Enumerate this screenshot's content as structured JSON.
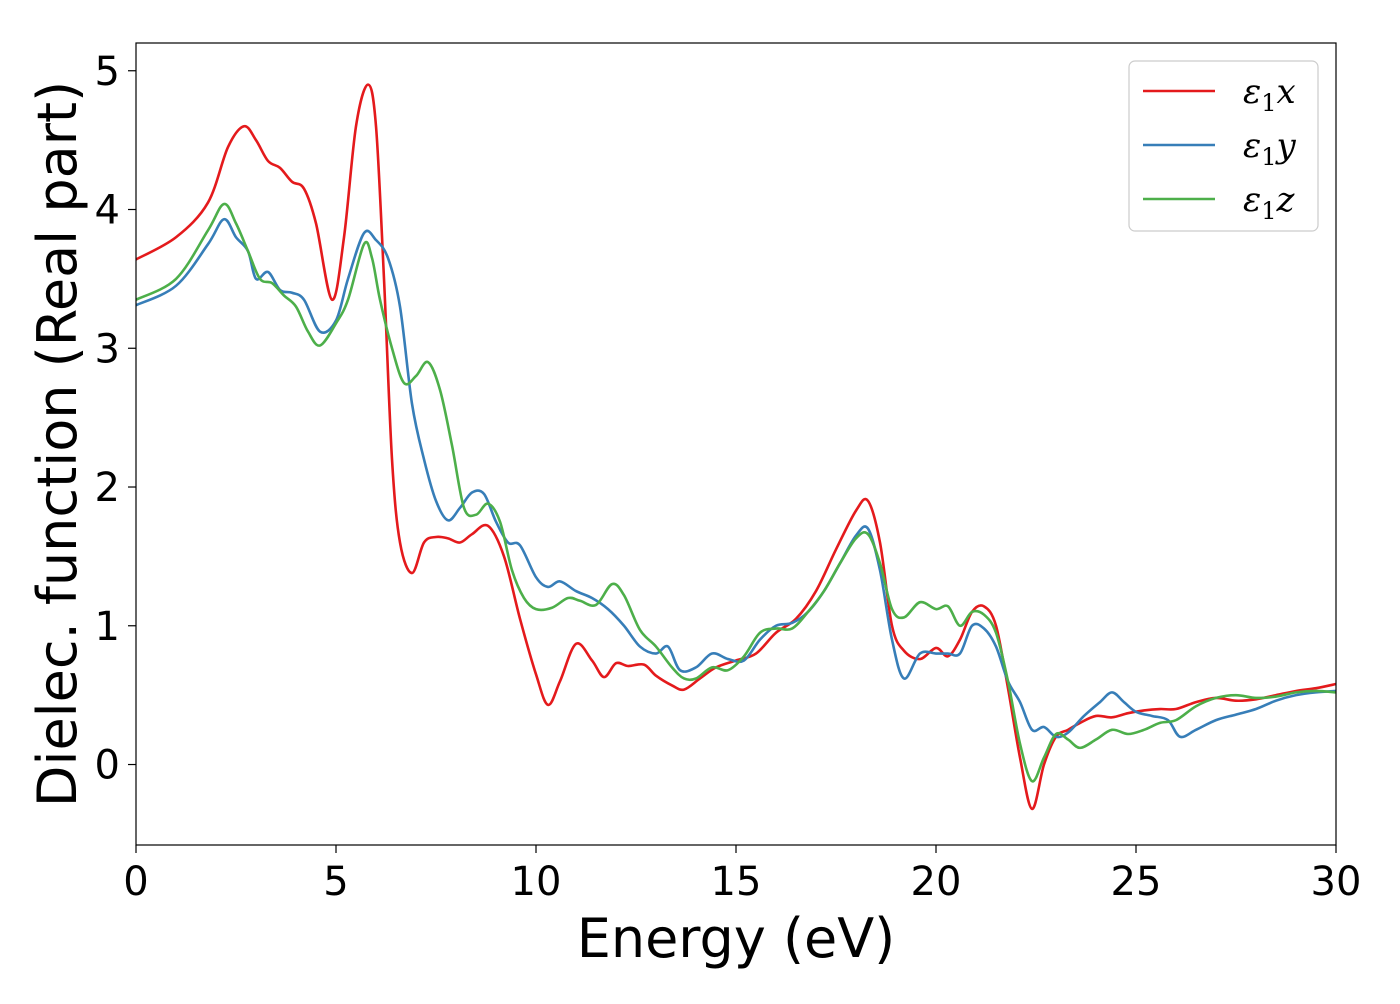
{
  "chart_data": {
    "type": "line",
    "title": "",
    "xlabel": "Energy (eV)",
    "ylabel": "Dielec. function (Real part)",
    "xlim": [
      0,
      30
    ],
    "ylim": [
      -0.58,
      5.2
    ],
    "xticks": [
      0,
      5,
      10,
      15,
      20,
      25,
      30
    ],
    "xtick_labels": [
      "0",
      "5",
      "10",
      "15",
      "20",
      "25",
      "30"
    ],
    "yticks": [
      0,
      1,
      2,
      3,
      4,
      5
    ],
    "ytick_labels": [
      "0",
      "1",
      "2",
      "3",
      "4",
      "5"
    ],
    "grid": false,
    "legend_position": "top-right",
    "series": [
      {
        "name": "ε₁x",
        "legend_base": "ε",
        "legend_sub": "1",
        "legend_var": "x",
        "color": "#e41a1c",
        "x": [
          0,
          1,
          1.8,
          2.3,
          2.7,
          3.0,
          3.3,
          3.6,
          3.9,
          4.2,
          4.5,
          4.9,
          5.2,
          5.5,
          5.8,
          6.0,
          6.2,
          6.4,
          6.6,
          6.9,
          7.2,
          7.5,
          7.8,
          8.1,
          8.4,
          8.8,
          9.2,
          9.6,
          10.0,
          10.3,
          10.6,
          11.0,
          11.4,
          11.7,
          12.0,
          12.3,
          12.7,
          13.0,
          13.4,
          13.7,
          14.1,
          14.5,
          15.0,
          15.5,
          16.0,
          16.5,
          17.0,
          17.5,
          18.0,
          18.3,
          18.6,
          18.9,
          19.2,
          19.6,
          20.0,
          20.3,
          20.6,
          20.9,
          21.2,
          21.5,
          21.8,
          22.1,
          22.4,
          22.7,
          23.0,
          23.3,
          23.6,
          24.0,
          24.4,
          24.8,
          25.2,
          25.6,
          26.0,
          26.5,
          27.0,
          27.5,
          28.0,
          28.5,
          29.0,
          29.5,
          30.0
        ],
        "values": [
          3.64,
          3.8,
          4.05,
          4.45,
          4.6,
          4.5,
          4.35,
          4.3,
          4.2,
          4.15,
          3.9,
          3.35,
          3.8,
          4.6,
          4.9,
          4.6,
          3.5,
          2.2,
          1.6,
          1.38,
          1.6,
          1.64,
          1.63,
          1.6,
          1.66,
          1.72,
          1.5,
          1.05,
          0.65,
          0.43,
          0.6,
          0.87,
          0.75,
          0.63,
          0.73,
          0.71,
          0.72,
          0.64,
          0.57,
          0.54,
          0.62,
          0.7,
          0.75,
          0.8,
          0.95,
          1.05,
          1.25,
          1.55,
          1.83,
          1.9,
          1.6,
          1.0,
          0.82,
          0.76,
          0.84,
          0.78,
          0.9,
          1.1,
          1.14,
          1.0,
          0.55,
          0.05,
          -0.32,
          0.0,
          0.2,
          0.25,
          0.3,
          0.35,
          0.34,
          0.37,
          0.39,
          0.4,
          0.4,
          0.45,
          0.48,
          0.46,
          0.47,
          0.5,
          0.53,
          0.55,
          0.58
        ]
      },
      {
        "name": "ε₁y",
        "legend_base": "ε",
        "legend_sub": "1",
        "legend_var": "y",
        "color": "#377eb8",
        "x": [
          0,
          1,
          1.8,
          2.2,
          2.5,
          2.8,
          3.0,
          3.3,
          3.6,
          3.9,
          4.2,
          4.6,
          5.0,
          5.3,
          5.7,
          6.0,
          6.3,
          6.6,
          6.9,
          7.2,
          7.5,
          7.8,
          8.1,
          8.4,
          8.7,
          9.0,
          9.3,
          9.6,
          10.0,
          10.3,
          10.6,
          11.0,
          11.4,
          11.8,
          12.2,
          12.6,
          13.0,
          13.3,
          13.6,
          14.0,
          14.4,
          14.8,
          15.2,
          15.6,
          16.0,
          16.4,
          16.8,
          17.2,
          17.6,
          18.0,
          18.3,
          18.6,
          18.9,
          19.2,
          19.6,
          20.0,
          20.3,
          20.6,
          20.9,
          21.2,
          21.5,
          21.8,
          22.1,
          22.4,
          22.7,
          23.0,
          23.3,
          23.7,
          24.1,
          24.4,
          24.7,
          25.0,
          25.4,
          25.8,
          26.1,
          26.5,
          27.0,
          27.5,
          28.0,
          28.5,
          29.0,
          29.5,
          30.0
        ],
        "values": [
          3.31,
          3.45,
          3.75,
          3.93,
          3.8,
          3.7,
          3.5,
          3.55,
          3.42,
          3.4,
          3.35,
          3.12,
          3.2,
          3.5,
          3.83,
          3.78,
          3.65,
          3.3,
          2.6,
          2.2,
          1.9,
          1.76,
          1.85,
          1.96,
          1.95,
          1.75,
          1.6,
          1.58,
          1.35,
          1.28,
          1.32,
          1.25,
          1.2,
          1.12,
          1.0,
          0.85,
          0.8,
          0.85,
          0.68,
          0.7,
          0.8,
          0.76,
          0.75,
          0.9,
          1.0,
          1.02,
          1.1,
          1.25,
          1.45,
          1.65,
          1.7,
          1.4,
          0.9,
          0.62,
          0.8,
          0.8,
          0.8,
          0.8,
          1.0,
          0.98,
          0.85,
          0.6,
          0.45,
          0.25,
          0.27,
          0.2,
          0.23,
          0.35,
          0.45,
          0.52,
          0.45,
          0.38,
          0.35,
          0.32,
          0.2,
          0.25,
          0.32,
          0.36,
          0.4,
          0.46,
          0.5,
          0.52,
          0.53
        ]
      },
      {
        "name": "ε₁z",
        "legend_base": "ε",
        "legend_sub": "1",
        "legend_var": "z",
        "color": "#4daf4a",
        "x": [
          0,
          1,
          1.8,
          2.2,
          2.5,
          2.8,
          3.1,
          3.4,
          3.7,
          4.0,
          4.3,
          4.6,
          5.0,
          5.3,
          5.7,
          5.9,
          6.1,
          6.4,
          6.7,
          7.0,
          7.3,
          7.6,
          7.9,
          8.2,
          8.5,
          8.8,
          9.1,
          9.4,
          9.7,
          10.0,
          10.4,
          10.8,
          11.1,
          11.5,
          11.9,
          12.2,
          12.6,
          13.0,
          13.4,
          13.7,
          14.0,
          14.4,
          14.8,
          15.2,
          15.6,
          16.0,
          16.4,
          16.8,
          17.2,
          17.6,
          18.0,
          18.3,
          18.6,
          18.9,
          19.2,
          19.6,
          20.0,
          20.3,
          20.6,
          20.9,
          21.2,
          21.5,
          21.8,
          22.1,
          22.4,
          22.7,
          23.0,
          23.3,
          23.6,
          24.0,
          24.4,
          24.8,
          25.2,
          25.6,
          26.0,
          26.5,
          27.0,
          27.5,
          28.0,
          28.5,
          29.0,
          29.5,
          30.0
        ],
        "values": [
          3.35,
          3.5,
          3.85,
          4.04,
          3.9,
          3.7,
          3.5,
          3.47,
          3.38,
          3.3,
          3.12,
          3.02,
          3.18,
          3.35,
          3.75,
          3.65,
          3.35,
          3.0,
          2.75,
          2.8,
          2.9,
          2.7,
          2.3,
          1.85,
          1.8,
          1.88,
          1.75,
          1.4,
          1.2,
          1.12,
          1.13,
          1.2,
          1.18,
          1.15,
          1.3,
          1.22,
          0.97,
          0.85,
          0.7,
          0.62,
          0.62,
          0.7,
          0.68,
          0.78,
          0.95,
          0.98,
          0.98,
          1.1,
          1.25,
          1.45,
          1.63,
          1.66,
          1.45,
          1.12,
          1.06,
          1.17,
          1.12,
          1.14,
          1.0,
          1.1,
          1.08,
          0.95,
          0.6,
          0.15,
          -0.12,
          0.05,
          0.22,
          0.18,
          0.12,
          0.18,
          0.25,
          0.22,
          0.25,
          0.3,
          0.32,
          0.42,
          0.48,
          0.5,
          0.48,
          0.49,
          0.52,
          0.53,
          0.52
        ]
      }
    ]
  }
}
